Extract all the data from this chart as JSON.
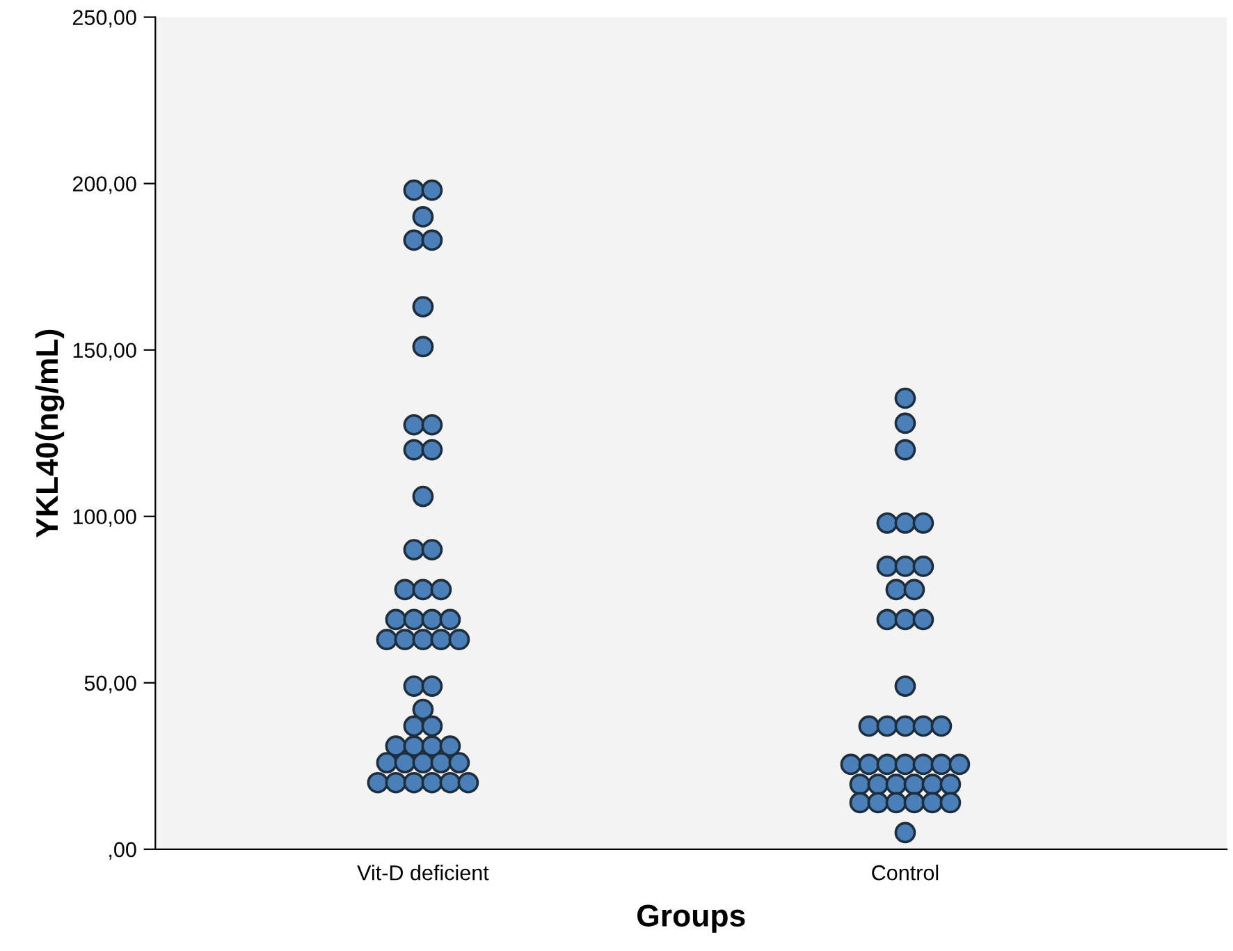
{
  "chart_data": {
    "type": "scatter",
    "xlabel": "Groups",
    "ylabel": "YKL40(ng/mL)",
    "categories": [
      "Vit-D deficient",
      "Control"
    ],
    "series": [
      {
        "color": "#4a7fb8",
        "x": [
          "Vit-D deficient",
          "Vit-D deficient",
          "Vit-D deficient",
          "Vit-D deficient",
          "Vit-D deficient",
          "Vit-D deficient",
          "Vit-D deficient",
          "Vit-D deficient",
          "Vit-D deficient",
          "Vit-D deficient",
          "Vit-D deficient",
          "Vit-D deficient",
          "Vit-D deficient",
          "Vit-D deficient",
          "Vit-D deficient",
          "Vit-D deficient",
          "Vit-D deficient",
          "Vit-D deficient",
          "Vit-D deficient",
          "Vit-D deficient",
          "Vit-D deficient",
          "Vit-D deficient",
          "Vit-D deficient",
          "Vit-D deficient",
          "Vit-D deficient",
          "Vit-D deficient",
          "Vit-D deficient",
          "Vit-D deficient",
          "Vit-D deficient",
          "Vit-D deficient",
          "Vit-D deficient",
          "Vit-D deficient",
          "Vit-D deficient",
          "Vit-D deficient",
          "Vit-D deficient",
          "Vit-D deficient",
          "Vit-D deficient",
          "Vit-D deficient",
          "Vit-D deficient",
          "Vit-D deficient",
          "Vit-D deficient",
          "Vit-D deficient",
          "Vit-D deficient",
          "Vit-D deficient",
          "Vit-D deficient",
          "Vit-D deficient"
        ],
        "values": [
          198,
          198,
          190,
          183,
          183,
          163,
          151,
          127.5,
          127.5,
          120,
          120,
          106,
          90,
          90,
          78,
          78,
          78,
          69,
          69,
          69,
          69,
          63,
          63,
          63,
          63,
          63,
          49,
          49,
          42,
          37,
          37,
          31,
          31,
          31,
          31,
          26,
          26,
          26,
          26,
          26,
          20,
          20,
          20,
          20,
          20,
          20
        ]
      },
      {
        "color": "#4a7fb8",
        "x": [
          "Control",
          "Control",
          "Control",
          "Control",
          "Control",
          "Control",
          "Control",
          "Control",
          "Control",
          "Control",
          "Control",
          "Control",
          "Control",
          "Control",
          "Control",
          "Control",
          "Control",
          "Control",
          "Control",
          "Control",
          "Control",
          "Control",
          "Control",
          "Control",
          "Control",
          "Control",
          "Control",
          "Control",
          "Control",
          "Control",
          "Control",
          "Control",
          "Control",
          "Control",
          "Control",
          "Control",
          "Control",
          "Control",
          "Control",
          "Control"
        ],
        "values": [
          135.5,
          128,
          120,
          98,
          98,
          98,
          85,
          85,
          85,
          78,
          78,
          69,
          69,
          69,
          49,
          37,
          37,
          37,
          37,
          37,
          25.5,
          25.5,
          25.5,
          25.5,
          25.5,
          25.5,
          25.5,
          19.5,
          19.5,
          19.5,
          19.5,
          19.5,
          19.5,
          14,
          14,
          14,
          14,
          14,
          14,
          5
        ]
      }
    ],
    "ylim": [
      0,
      250
    ],
    "yticks": [
      {
        "value": 0,
        "label": ",00"
      },
      {
        "value": 50,
        "label": "50,00"
      },
      {
        "value": 100,
        "label": "100,00"
      },
      {
        "value": 150,
        "label": "150,00"
      },
      {
        "value": 200,
        "label": "200,00"
      },
      {
        "value": 250,
        "label": "250,00"
      }
    ],
    "marker": "circle",
    "grid": false
  }
}
